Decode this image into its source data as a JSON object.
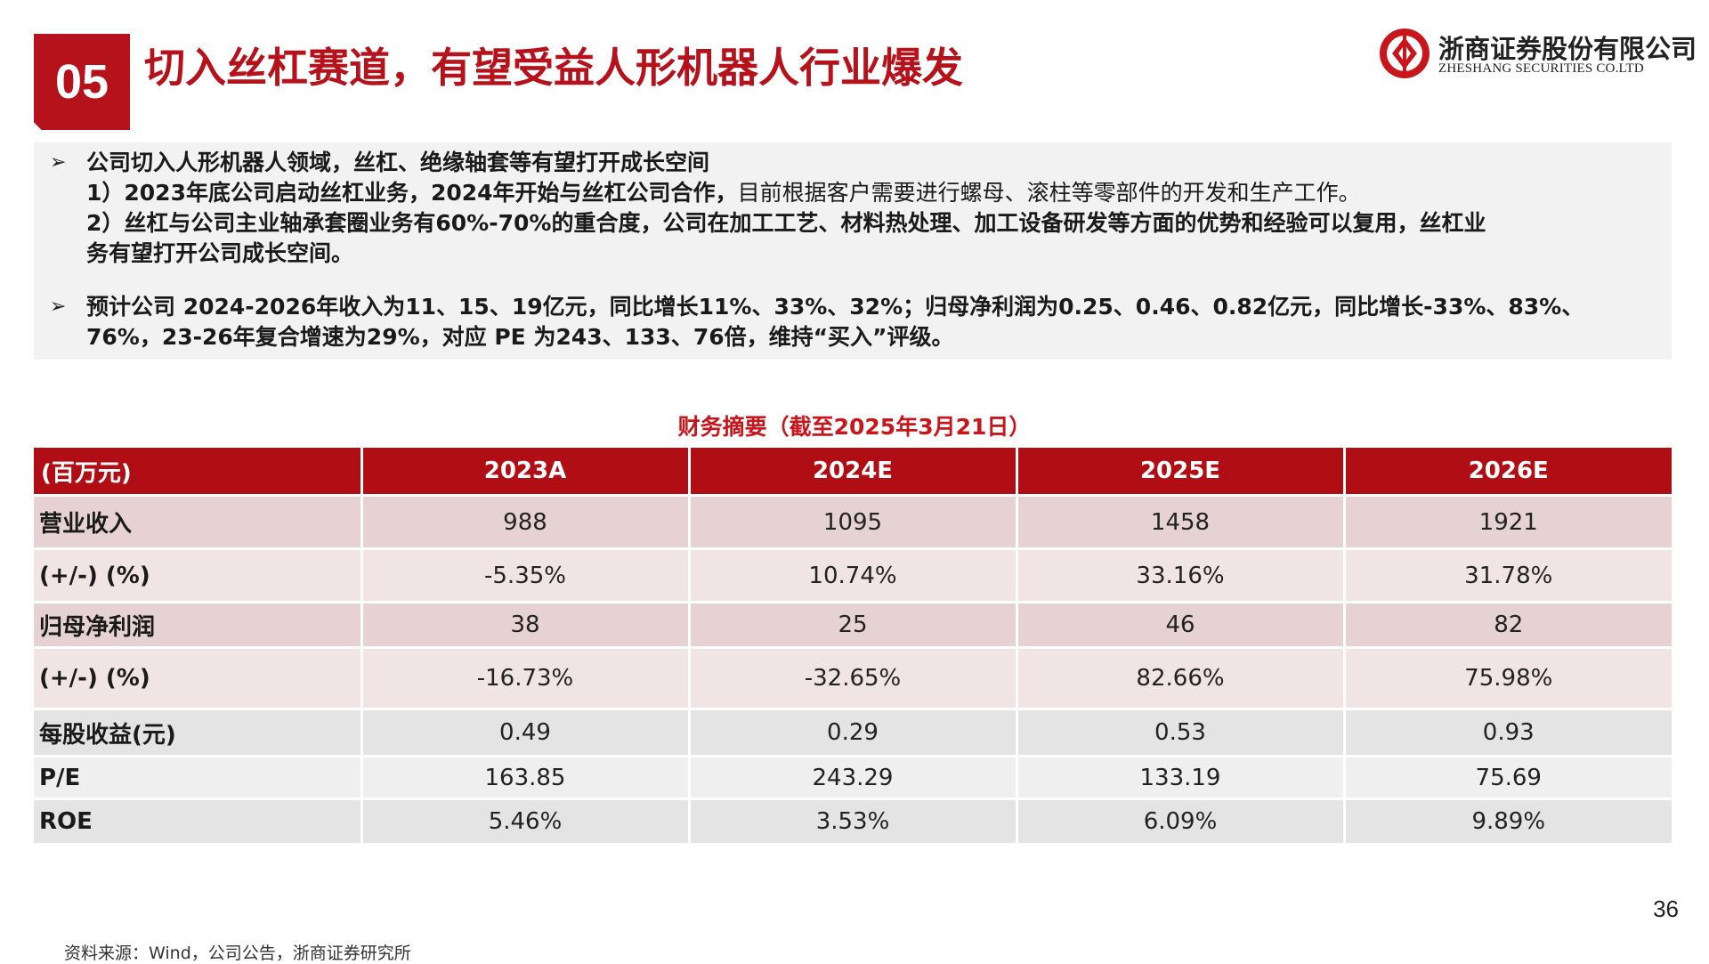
{
  "header": {
    "section_number": "05",
    "title": "切入丝杠赛道，有望受益人形机器人行业爆发",
    "brand_color": "#b5121b"
  },
  "logo": {
    "name_cn": "浙商证券股份有限公司",
    "name_en": "ZHESHANG SECURITIES CO.LTD"
  },
  "summary": {
    "bullet_icon": "arrow-bullet-icon",
    "points": [
      {
        "heading": "公司切入人形机器人领域，丝杠、绝缘轴套等有望打开成长空间",
        "item1_bold": "1）2023年底公司启动丝杠业务，2024年开始与丝杠公司合作，",
        "item1_normal": "目前根据客户需要进行螺母、滚柱等零部件的开发和生产工作。",
        "item2_line1": "2）丝杠与公司主业轴承套圈业务有60%-70%的重合度，公司在加工工艺、材料热处理、加工设备研发等方面的优势和经验可以复用，丝杠业",
        "item2_line2": "务有望打开公司成长空间。"
      },
      {
        "line1": "预计公司 2024-2026年收入为11、15、19亿元，同比增长11%、33%、32%；归母净利润为0.25、0.46、0.82亿元，同比增长-33%、83%、",
        "line2": "76%，23-26年复合增速为29%，对应 PE 为243、133、76倍，维持“买入”评级。"
      }
    ]
  },
  "table": {
    "title": "财务摘要（截至2025年3月21日）",
    "header_color": "#b00e14",
    "columns": [
      "(百万元)",
      "2023A",
      "2024E",
      "2025E",
      "2026E"
    ],
    "rows": [
      {
        "label": "营业收入",
        "values": [
          "988",
          "1095",
          "1458",
          "1921"
        ]
      },
      {
        "label": "(+/-) (%)",
        "values": [
          "-5.35%",
          "10.74%",
          "33.16%",
          "31.78%"
        ]
      },
      {
        "label": "归母净利润",
        "values": [
          "38",
          "25",
          "46",
          "82"
        ]
      },
      {
        "label": "(+/-) (%)",
        "values": [
          "-16.73%",
          "-32.65%",
          "82.66%",
          "75.98%"
        ]
      },
      {
        "label": "每股收益(元)",
        "values": [
          "0.49",
          "0.29",
          "0.53",
          "0.93"
        ]
      },
      {
        "label": "P/E",
        "values": [
          "163.85",
          "243.29",
          "133.19",
          "75.69"
        ]
      },
      {
        "label": "ROE",
        "values": [
          "5.46%",
          "3.53%",
          "6.09%",
          "9.89%"
        ]
      }
    ]
  },
  "footer": {
    "page_number": "36",
    "source": "资料来源：Wind，公司公告，浙商证券研究所"
  }
}
